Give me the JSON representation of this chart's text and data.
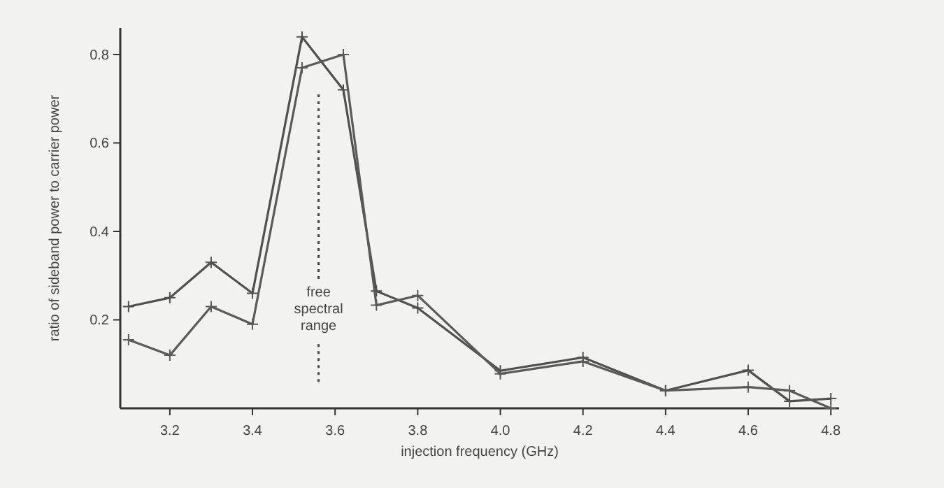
{
  "chart_data": {
    "type": "line",
    "xlabel": "injection frequency (GHz)",
    "ylabel": "ratio of sideband power to carrier power",
    "xlim": [
      3.08,
      4.82
    ],
    "ylim": [
      0,
      0.86
    ],
    "xticks": [
      3.2,
      3.4,
      3.6,
      3.8,
      {
        "value": 4,
        "label": "4.0"
      },
      4.2,
      4.4,
      4.6,
      4.8
    ],
    "yticks": [
      0.2,
      0.4,
      0.6,
      0.8
    ],
    "grid": false,
    "marker": "cross",
    "line_style": "solid",
    "ref_lines": [
      {
        "axis": "x",
        "value": 3.56,
        "label": "free spectral range",
        "line_style": "dotted",
        "color": "#444444"
      }
    ],
    "series": [
      {
        "color": "#505050",
        "x": [
          3.1,
          3.2,
          3.3,
          3.4,
          3.52,
          3.62,
          3.7,
          3.8,
          4.0,
          4.2,
          4.4,
          4.6,
          4.7,
          4.8
        ],
        "values": [
          0.23,
          0.25,
          0.33,
          0.26,
          0.84,
          0.72,
          0.265,
          0.227,
          0.085,
          0.115,
          0.04,
          0.086,
          0.016,
          0.022
        ]
      },
      {
        "color": "#5a5a5a",
        "x": [
          3.1,
          3.2,
          3.3,
          3.4,
          3.52,
          3.62,
          3.7,
          3.8,
          4.0,
          4.2,
          4.4,
          4.6,
          4.7,
          4.8
        ],
        "values": [
          0.155,
          0.12,
          0.23,
          0.19,
          0.77,
          0.8,
          0.233,
          0.255,
          0.078,
          0.106,
          0.04,
          0.048,
          0.04,
          0.0
        ]
      }
    ]
  }
}
